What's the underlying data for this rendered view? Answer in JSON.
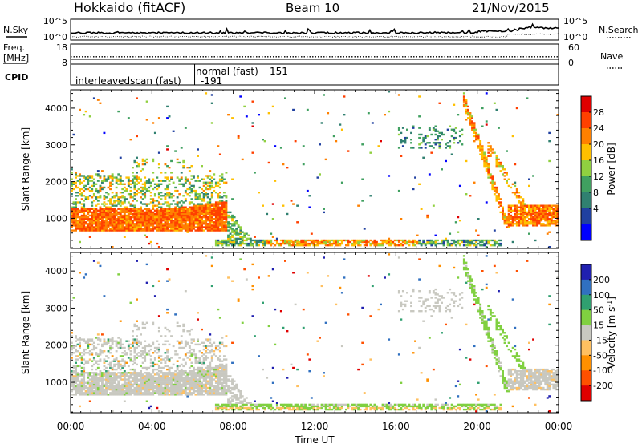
{
  "header": {
    "site": "Hokkaido (fitACF)",
    "beam": "Beam 10",
    "date": "21/Nov/2015"
  },
  "colors": {
    "background": "#ffffff",
    "axis": "#000000"
  },
  "chart_data": [
    {
      "id": "noise",
      "type": "line",
      "series": [
        {
          "name": "N.Sky",
          "style": "solid"
        },
        {
          "name": "N.Search",
          "style": "dotted"
        }
      ],
      "y_ticks_left": [
        "10^5",
        "10^0"
      ],
      "y_ticks_right": [
        "10^5",
        "10^0"
      ]
    },
    {
      "id": "frequency",
      "type": "line",
      "series": [
        {
          "name": "Freq. [MHz]",
          "style": "solid",
          "value": 10.4
        },
        {
          "name": "Nave",
          "style": "dotted",
          "value": 22
        }
      ],
      "left_label_lines": [
        "Freq.",
        "[MHz]"
      ],
      "y_ticks_left": [
        "18",
        "8"
      ],
      "y_ticks_right": [
        "60",
        "0"
      ],
      "ylim_left": [
        8,
        18
      ],
      "ylim_right": [
        0,
        60
      ]
    },
    {
      "id": "cpid",
      "type": "table",
      "label": "CPID",
      "entries": [
        {
          "start_hour": 0.0,
          "name": "interleavedscan (fast)",
          "id": "-191"
        },
        {
          "start_hour": 6.1,
          "name": "normal (fast)",
          "id": "151"
        }
      ]
    },
    {
      "id": "power",
      "type": "heatmap",
      "ylabel": "Slant Range [km]",
      "y_ticks": [
        1000,
        2000,
        3000,
        4000
      ],
      "ylim": [
        180,
        4500
      ],
      "colorbar": {
        "label": "Power [dB]",
        "ticks": [
          "28",
          "24",
          "20",
          "16",
          "12",
          "8",
          "4"
        ],
        "colors": [
          "#e00000",
          "#ff4000",
          "#ff8000",
          "#ffc000",
          "#90d040",
          "#40a060",
          "#308070",
          "#2040a0",
          "#0000ff"
        ]
      }
    },
    {
      "id": "velocity",
      "type": "heatmap",
      "ylabel": "Slant Range [km]",
      "xlabel": "Time UT",
      "y_ticks": [
        1000,
        2000,
        3000,
        4000
      ],
      "ylim": [
        180,
        4500
      ],
      "x_ticks": [
        "00:00",
        "04:00",
        "08:00",
        "12:00",
        "16:00",
        "20:00",
        "00:00"
      ],
      "xlim_hours": [
        0,
        24
      ],
      "colorbar": {
        "label": "Velocity [m s^-1]",
        "ticks": [
          "200",
          "100",
          "50",
          "15",
          "-15",
          "-50",
          "-100",
          "-200"
        ],
        "colors": [
          "#2020b0",
          "#3070c0",
          "#30a070",
          "#80d040",
          "#c8c8c0",
          "#ffc060",
          "#ff9000",
          "#ff5000",
          "#e00000"
        ]
      }
    }
  ]
}
